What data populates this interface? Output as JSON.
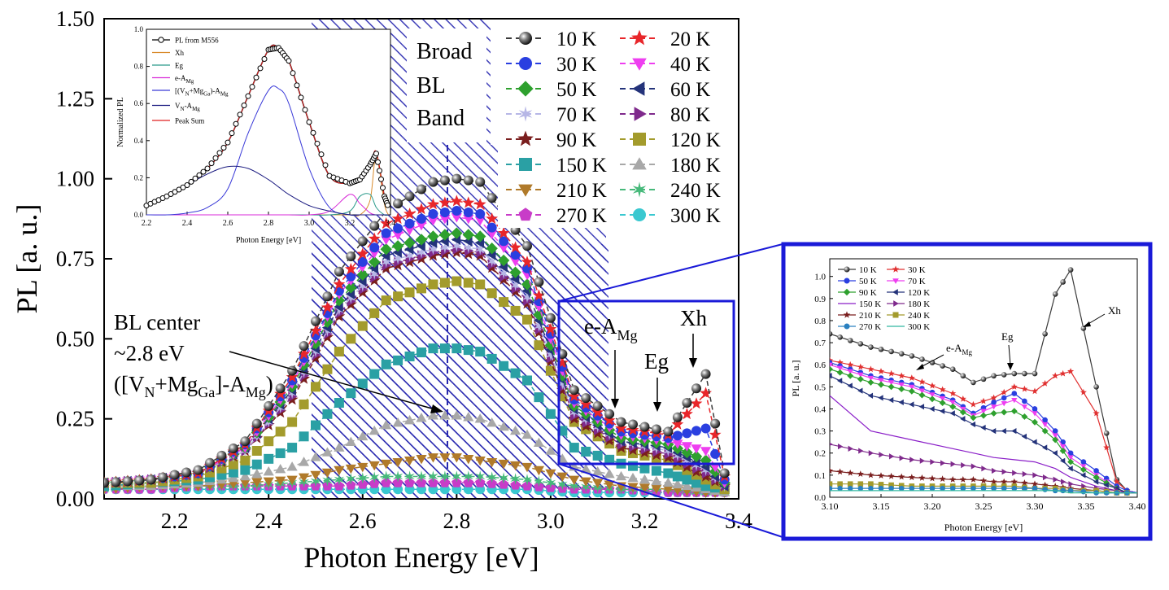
{
  "main": {
    "xlabel": "Photon Energy [eV]",
    "ylabel": "PL [a. u.]",
    "xticks": [
      "2.2",
      "2.4",
      "2.6",
      "2.8",
      "3.0",
      "3.2",
      "3.4"
    ],
    "yticks": [
      "0.00",
      "0.25",
      "0.50",
      "0.75",
      "1.00",
      "1.25",
      "1.50"
    ],
    "band_label": [
      "Broad",
      "BL",
      "Band"
    ],
    "bl_center": {
      "line1": "BL center",
      "line2": "~2.8 eV",
      "line3_a": "([V",
      "line3_b": "N",
      "line3_c": "+Mg",
      "line3_d": "Ga",
      "line3_e": "]-A",
      "line3_f": "Mg",
      "line3_g": ")"
    },
    "eamg": {
      "a": "e-A",
      "b": "Mg"
    },
    "eg": "Eg",
    "xh": "Xh"
  },
  "inset_left": {
    "xlabel": "Photon Energy [eV]",
    "ylabel": "Normalized PL",
    "xticks": [
      "2.2",
      "2.4",
      "2.6",
      "2.8",
      "3.0",
      "3.2",
      "3.4"
    ],
    "yticks": [
      "0.0",
      "0.2",
      "0.4",
      "0.6",
      "0.8",
      "1.0"
    ],
    "legend": [
      "PL from M556",
      "Xh",
      "Eg",
      "e-A",
      "[(V",
      "V",
      "Peak Sum"
    ],
    "legend_sub": {
      "mg": "Mg",
      "n": "N",
      "ga": "Ga",
      "mid": "+Mg",
      "end": ")-A"
    }
  },
  "inset_right": {
    "xlabel": "Photon Energy [eV]",
    "ylabel": "PL [a. u.]",
    "xticks": [
      "3.10",
      "3.15",
      "3.20",
      "3.25",
      "3.30",
      "3.35",
      "3.40"
    ],
    "yticks": [
      "0.0",
      "0.1",
      "0.2",
      "0.3",
      "0.4",
      "0.5",
      "0.6",
      "0.7",
      "0.8",
      "0.9",
      "1.0"
    ],
    "ann_eamg": {
      "a": "e-A",
      "b": "Mg"
    },
    "ann_eg": "Eg",
    "ann_xh": "Xh",
    "legend": [
      "10 K",
      "30 K",
      "50 K",
      "70 K",
      "90 K",
      "120 K",
      "150 K",
      "180 K",
      "210 K",
      "240 K",
      "270 K",
      "300 K"
    ]
  },
  "legend_main": [
    "10 K",
    "20 K",
    "30 K",
    "40 K",
    "50 K",
    "60 K",
    "70 K",
    "80 K",
    "90 K",
    "120 K",
    "150 K",
    "180 K",
    "210 K",
    "240 K",
    "270 K",
    "300 K"
  ],
  "chart_data": [
    {
      "type": "scatter",
      "xlabel": "Photon Energy [eV]",
      "ylabel": "PL [a. u.]",
      "xlim": [
        2.05,
        3.4
      ],
      "ylim": [
        0,
        1.5
      ],
      "x": [
        2.05,
        2.15,
        2.25,
        2.35,
        2.45,
        2.55,
        2.65,
        2.75,
        2.8,
        2.85,
        2.95,
        3.05,
        3.15,
        3.25,
        3.33,
        3.37
      ],
      "series": [
        {
          "name": "10 K",
          "color": "#3a3a3a",
          "marker": "sphere",
          "values": [
            0.05,
            0.06,
            0.09,
            0.18,
            0.4,
            0.71,
            0.9,
            0.99,
            1.0,
            0.99,
            0.79,
            0.34,
            0.24,
            0.21,
            0.39,
            0.08
          ]
        },
        {
          "name": "20 K",
          "color": "#e8262a",
          "marker": "star",
          "values": [
            0.05,
            0.06,
            0.08,
            0.17,
            0.38,
            0.67,
            0.86,
            0.92,
            0.93,
            0.92,
            0.74,
            0.32,
            0.22,
            0.2,
            0.33,
            0.07
          ]
        },
        {
          "name": "30 K",
          "color": "#2a3fe0",
          "marker": "circle",
          "values": [
            0.05,
            0.06,
            0.08,
            0.17,
            0.37,
            0.65,
            0.83,
            0.89,
            0.9,
            0.89,
            0.72,
            0.31,
            0.21,
            0.19,
            0.22,
            0.06
          ]
        },
        {
          "name": "40 K",
          "color": "#ee3ef0",
          "marker": "triangle-down",
          "values": [
            0.05,
            0.06,
            0.08,
            0.16,
            0.36,
            0.64,
            0.81,
            0.87,
            0.88,
            0.87,
            0.7,
            0.3,
            0.2,
            0.18,
            0.15,
            0.05
          ]
        },
        {
          "name": "50 K",
          "color": "#2ea02e",
          "marker": "diamond",
          "values": [
            0.05,
            0.06,
            0.08,
            0.16,
            0.35,
            0.62,
            0.78,
            0.82,
            0.83,
            0.82,
            0.67,
            0.29,
            0.19,
            0.17,
            0.12,
            0.05
          ]
        },
        {
          "name": "60 K",
          "color": "#24337a",
          "marker": "triangle-left",
          "values": [
            0.05,
            0.06,
            0.08,
            0.16,
            0.34,
            0.6,
            0.76,
            0.8,
            0.81,
            0.8,
            0.65,
            0.28,
            0.18,
            0.16,
            0.1,
            0.04
          ]
        },
        {
          "name": "70 K",
          "color": "#b7b7e6",
          "marker": "star6",
          "values": [
            0.05,
            0.06,
            0.08,
            0.15,
            0.33,
            0.59,
            0.74,
            0.78,
            0.79,
            0.78,
            0.63,
            0.27,
            0.18,
            0.15,
            0.09,
            0.04
          ]
        },
        {
          "name": "80 K",
          "color": "#7f2a8c",
          "marker": "triangle-right",
          "values": [
            0.05,
            0.06,
            0.08,
            0.15,
            0.32,
            0.58,
            0.73,
            0.77,
            0.78,
            0.77,
            0.62,
            0.26,
            0.17,
            0.14,
            0.08,
            0.04
          ]
        },
        {
          "name": "90 K",
          "color": "#7a1e1e",
          "marker": "star",
          "values": [
            0.05,
            0.06,
            0.08,
            0.15,
            0.31,
            0.57,
            0.72,
            0.76,
            0.77,
            0.76,
            0.61,
            0.25,
            0.16,
            0.13,
            0.07,
            0.04
          ]
        },
        {
          "name": "120 K",
          "color": "#a39b2c",
          "marker": "square",
          "values": [
            0.05,
            0.05,
            0.07,
            0.12,
            0.24,
            0.46,
            0.62,
            0.67,
            0.68,
            0.67,
            0.56,
            0.24,
            0.15,
            0.12,
            0.06,
            0.03
          ]
        },
        {
          "name": "150 K",
          "color": "#2aa0a4",
          "marker": "square",
          "values": [
            0.04,
            0.05,
            0.06,
            0.09,
            0.16,
            0.3,
            0.42,
            0.47,
            0.47,
            0.46,
            0.37,
            0.16,
            0.11,
            0.08,
            0.04,
            0.03
          ]
        },
        {
          "name": "180 K",
          "color": "#a8a8a8",
          "marker": "triangle-up",
          "values": [
            0.04,
            0.04,
            0.05,
            0.07,
            0.1,
            0.16,
            0.23,
            0.26,
            0.26,
            0.25,
            0.2,
            0.1,
            0.07,
            0.05,
            0.03,
            0.02
          ]
        },
        {
          "name": "210 K",
          "color": "#b07a2a",
          "marker": "triangle-down",
          "values": [
            0.03,
            0.04,
            0.04,
            0.05,
            0.06,
            0.09,
            0.11,
            0.13,
            0.13,
            0.12,
            0.1,
            0.06,
            0.04,
            0.03,
            0.02,
            0.02
          ]
        },
        {
          "name": "240 K",
          "color": "#46b97a",
          "marker": "star6",
          "values": [
            0.03,
            0.04,
            0.04,
            0.04,
            0.05,
            0.06,
            0.07,
            0.07,
            0.07,
            0.07,
            0.06,
            0.04,
            0.03,
            0.03,
            0.02,
            0.02
          ]
        },
        {
          "name": "270 K",
          "color": "#c83cc8",
          "marker": "pentagon",
          "values": [
            0.03,
            0.03,
            0.04,
            0.04,
            0.04,
            0.04,
            0.05,
            0.05,
            0.05,
            0.05,
            0.04,
            0.03,
            0.03,
            0.02,
            0.02,
            0.02
          ]
        },
        {
          "name": "300 K",
          "color": "#3ac8d0",
          "marker": "circle",
          "values": [
            0.03,
            0.03,
            0.03,
            0.03,
            0.03,
            0.03,
            0.03,
            0.03,
            0.03,
            0.03,
            0.03,
            0.02,
            0.02,
            0.02,
            0.02,
            0.02
          ]
        }
      ]
    },
    {
      "type": "line",
      "xlabel": "Photon Energy [eV]",
      "ylabel": "Normalized PL",
      "xlim": [
        2.2,
        3.4
      ],
      "ylim": [
        0,
        1.0
      ],
      "x": [
        2.2,
        2.3,
        2.4,
        2.5,
        2.6,
        2.7,
        2.8,
        2.85,
        2.9,
        3.0,
        3.1,
        3.2,
        3.25,
        3.3,
        3.33,
        3.37,
        3.39
      ],
      "series": [
        {
          "name": "PL from M556",
          "color": "#000000",
          "marker": "open-circle",
          "values": [
            0.05,
            0.1,
            0.16,
            0.25,
            0.39,
            0.64,
            0.89,
            0.9,
            0.83,
            0.5,
            0.21,
            0.17,
            0.19,
            0.27,
            0.33,
            0.1,
            0.04
          ]
        },
        {
          "name": "Xh",
          "color": "#d98a2a",
          "values": [
            0,
            0,
            0,
            0,
            0,
            0,
            0,
            0,
            0,
            0,
            0,
            0,
            0,
            0.08,
            0.32,
            0.06,
            0
          ]
        },
        {
          "name": "Eg",
          "color": "#2a9a8a",
          "values": [
            0,
            0,
            0,
            0,
            0,
            0,
            0,
            0,
            0,
            0,
            0,
            0.02,
            0.1,
            0.11,
            0.04,
            0,
            0
          ]
        },
        {
          "name": "e-A_Mg",
          "color": "#d82ad8",
          "values": [
            0,
            0,
            0,
            0,
            0,
            0,
            0,
            0,
            0,
            0,
            0.02,
            0.11,
            0.06,
            0.01,
            0,
            0,
            0
          ]
        },
        {
          "name": "[(V_N+Mg_Ga)-A_Mg",
          "color": "#3a3ad8",
          "values": [
            0,
            0,
            0.01,
            0.04,
            0.14,
            0.44,
            0.67,
            0.68,
            0.6,
            0.25,
            0.04,
            0,
            0,
            0,
            0,
            0,
            0
          ]
        },
        {
          "name": "V_N-A_Mg",
          "color": "#1a1a80",
          "values": [
            0.05,
            0.1,
            0.16,
            0.22,
            0.26,
            0.25,
            0.19,
            0.15,
            0.11,
            0.05,
            0.02,
            0,
            0,
            0,
            0,
            0,
            0
          ]
        },
        {
          "name": "Peak Sum",
          "color": "#e02020",
          "values": [
            0.05,
            0.1,
            0.16,
            0.25,
            0.39,
            0.64,
            0.89,
            0.9,
            0.83,
            0.5,
            0.21,
            0.17,
            0.19,
            0.27,
            0.34,
            0.1,
            0.04
          ]
        }
      ]
    },
    {
      "type": "line",
      "xlabel": "Photon Energy [eV]",
      "ylabel": "PL [a. u.]",
      "xlim": [
        3.1,
        3.4
      ],
      "ylim": [
        0,
        1.08
      ],
      "x": [
        3.1,
        3.14,
        3.18,
        3.22,
        3.24,
        3.26,
        3.28,
        3.3,
        3.32,
        3.335,
        3.36,
        3.38,
        3.39,
        3.4
      ],
      "series": [
        {
          "name": "10 K",
          "color": "#3a3a3a",
          "values": [
            0.74,
            0.68,
            0.64,
            0.58,
            0.52,
            0.55,
            0.56,
            0.56,
            0.92,
            1.03,
            0.5,
            0.08,
            0.03,
            0.02
          ]
        },
        {
          "name": "30 K",
          "color": "#e03030",
          "values": [
            0.62,
            0.58,
            0.54,
            0.47,
            0.42,
            0.45,
            0.5,
            0.48,
            0.55,
            0.57,
            0.38,
            0.07,
            0.03,
            0.02
          ]
        },
        {
          "name": "50 K",
          "color": "#2a3fe0",
          "values": [
            0.61,
            0.55,
            0.51,
            0.44,
            0.38,
            0.43,
            0.47,
            0.4,
            0.3,
            0.2,
            0.12,
            0.05,
            0.03,
            0.02
          ]
        },
        {
          "name": "70 K",
          "color": "#ee3ef0",
          "values": [
            0.6,
            0.54,
            0.5,
            0.43,
            0.37,
            0.41,
            0.44,
            0.38,
            0.28,
            0.18,
            0.1,
            0.04,
            0.02,
            0.02
          ]
        },
        {
          "name": "90 K",
          "color": "#2ea02e",
          "values": [
            0.58,
            0.52,
            0.48,
            0.41,
            0.36,
            0.38,
            0.39,
            0.34,
            0.26,
            0.16,
            0.09,
            0.04,
            0.02,
            0.02
          ]
        },
        {
          "name": "120 K",
          "color": "#24337a",
          "values": [
            0.55,
            0.46,
            0.42,
            0.38,
            0.33,
            0.3,
            0.3,
            0.25,
            0.2,
            0.13,
            0.07,
            0.04,
            0.02,
            0.02
          ]
        },
        {
          "name": "150 K",
          "color": "#8a1ec8",
          "values": [
            0.46,
            0.3,
            0.26,
            0.22,
            0.2,
            0.18,
            0.17,
            0.16,
            0.13,
            0.09,
            0.05,
            0.03,
            0.02,
            0.02
          ]
        },
        {
          "name": "180 K",
          "color": "#7f2a8c",
          "values": [
            0.24,
            0.2,
            0.17,
            0.15,
            0.14,
            0.12,
            0.11,
            0.1,
            0.08,
            0.06,
            0.04,
            0.03,
            0.02,
            0.02
          ]
        },
        {
          "name": "210 K",
          "color": "#7a1e1e",
          "values": [
            0.12,
            0.1,
            0.09,
            0.08,
            0.08,
            0.07,
            0.07,
            0.06,
            0.05,
            0.04,
            0.03,
            0.02,
            0.02,
            0.02
          ]
        },
        {
          "name": "240 K",
          "color": "#a39b2c",
          "values": [
            0.06,
            0.06,
            0.05,
            0.05,
            0.05,
            0.05,
            0.05,
            0.04,
            0.04,
            0.03,
            0.03,
            0.02,
            0.02,
            0.02
          ]
        },
        {
          "name": "270 K",
          "color": "#2a80c0",
          "values": [
            0.04,
            0.04,
            0.04,
            0.04,
            0.04,
            0.04,
            0.04,
            0.04,
            0.03,
            0.03,
            0.02,
            0.02,
            0.02,
            0.02
          ]
        },
        {
          "name": "300 K",
          "color": "#30b8a0",
          "values": [
            0.03,
            0.03,
            0.03,
            0.03,
            0.03,
            0.03,
            0.03,
            0.03,
            0.03,
            0.02,
            0.02,
            0.02,
            0.02,
            0.02
          ]
        }
      ]
    }
  ]
}
